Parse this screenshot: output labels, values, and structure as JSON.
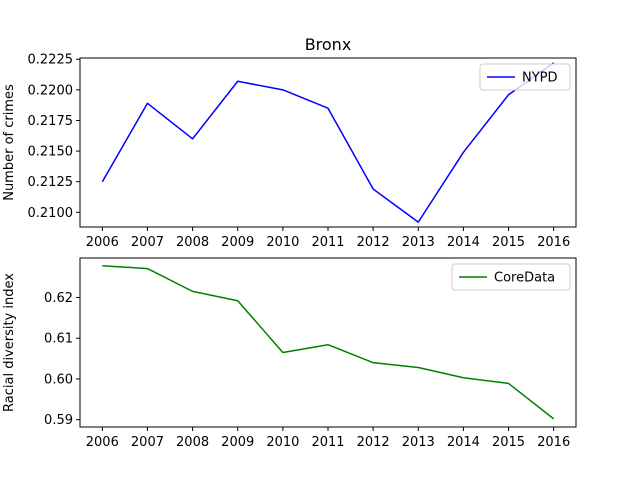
{
  "chart_data": [
    {
      "type": "line",
      "title": "Bronx",
      "xlabel": "",
      "ylabel": "Number of crimes",
      "x": [
        "2006",
        "2007",
        "2008",
        "2009",
        "2010",
        "2011",
        "2012",
        "2013",
        "2014",
        "2015",
        "2016"
      ],
      "series": [
        {
          "name": "NYPD",
          "color": "#0000ff",
          "values": [
            0.2125,
            0.2189,
            0.216,
            0.2207,
            0.22,
            0.2185,
            0.2119,
            0.2092,
            0.2149,
            0.2196,
            0.2222
          ]
        }
      ],
      "ylim": [
        0.2088,
        0.2226
      ],
      "yticks": [
        "0.2100",
        "0.2125",
        "0.2150",
        "0.2175",
        "0.2200",
        "0.2225"
      ],
      "legend": "top-right",
      "grid": false
    },
    {
      "type": "line",
      "title": "",
      "xlabel": "",
      "ylabel": "Racial diversity index",
      "x": [
        "2006",
        "2007",
        "2008",
        "2009",
        "2010",
        "2011",
        "2012",
        "2013",
        "2014",
        "2015",
        "2016"
      ],
      "series": [
        {
          "name": "CoreData",
          "color": "#008000",
          "values": [
            0.6278,
            0.6271,
            0.6215,
            0.6192,
            0.6065,
            0.6084,
            0.604,
            0.6028,
            0.6003,
            0.5989,
            0.5902
          ]
        }
      ],
      "ylim": [
        0.5882,
        0.6297
      ],
      "yticks": [
        "0.59",
        "0.60",
        "0.61",
        "0.62"
      ],
      "legend": "top-right",
      "grid": false
    }
  ]
}
